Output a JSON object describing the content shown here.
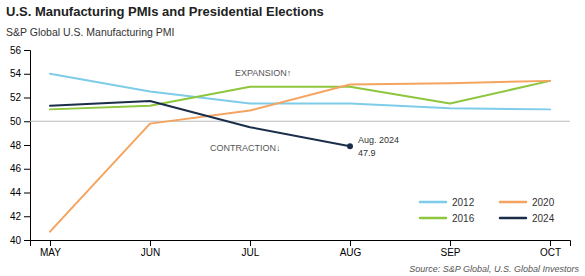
{
  "chart_data": {
    "type": "line",
    "title": "U.S. Manufacturing PMIs and Presidential Elections",
    "subtitle": "S&P Global U.S. Manufacturing PMI",
    "source": "Source: S&P Global, U.S. Global Investors",
    "categories": [
      "MAY",
      "JUN",
      "JUL",
      "AUG",
      "SEP",
      "OCT"
    ],
    "series": [
      {
        "name": "2012",
        "color": "#7ecce8",
        "values": [
          54.0,
          52.5,
          51.5,
          51.5,
          51.1,
          51.0
        ]
      },
      {
        "name": "2016",
        "color": "#8dc63f",
        "values": [
          51.0,
          51.3,
          52.9,
          52.9,
          51.5,
          53.4
        ]
      },
      {
        "name": "2020",
        "color": "#f4a460",
        "values": [
          40.7,
          49.8,
          50.9,
          53.1,
          53.2,
          53.4
        ]
      },
      {
        "name": "2024",
        "color": "#1a2e4a",
        "values": [
          51.3,
          51.7,
          49.5,
          47.9,
          null,
          null
        ]
      }
    ],
    "ylim": [
      40,
      56
    ],
    "yticks": [
      40,
      42,
      44,
      46,
      48,
      50,
      52,
      54,
      56
    ],
    "threshold": 50.0,
    "annotations": [
      {
        "text": "EXPANSION↑"
      },
      {
        "text": "CONTRACTION↓"
      },
      {
        "x": "AUG",
        "y": 47.9,
        "text": "Aug. 2024",
        "value_label": "47.9"
      }
    ],
    "legend": "lower right",
    "grid": false
  }
}
